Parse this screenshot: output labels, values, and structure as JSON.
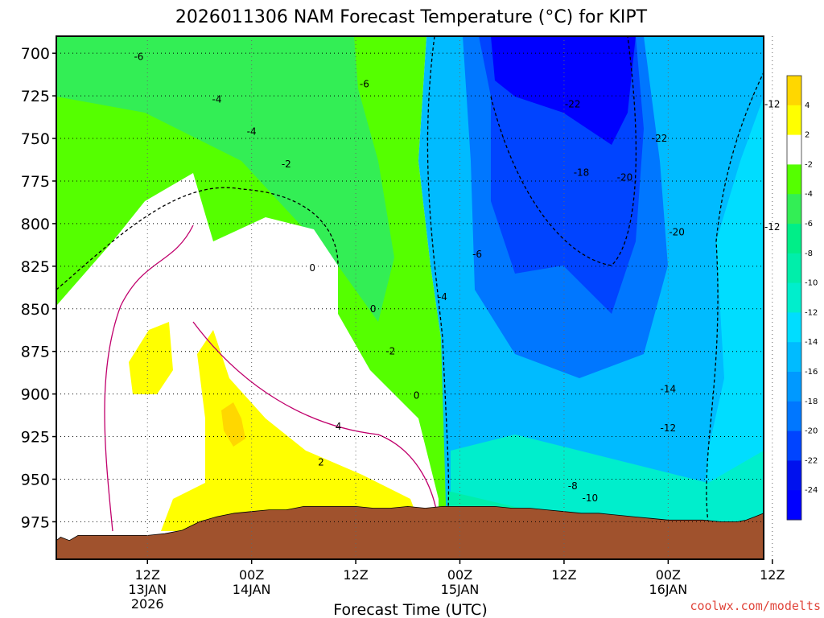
{
  "chart_data": {
    "type": "heatmap",
    "title": "2026011306 NAM Forecast Temperature (°C) for KIPT",
    "xlabel": "Forecast Time (UTC)",
    "ylabel": "",
    "credit": "coolwx.com/modelts",
    "y_axis": {
      "inverted": true,
      "ticks": [
        "700",
        "725",
        "750",
        "775",
        "800",
        "825",
        "850",
        "875",
        "900",
        "925",
        "950",
        "975"
      ],
      "range": [
        690,
        997
      ]
    },
    "x_axis": {
      "range_hours": [
        -4.5,
        77
      ],
      "ticks": [
        {
          "hour": 6,
          "line1": "12Z",
          "line2": "13JAN",
          "line3": "2026"
        },
        {
          "hour": 18,
          "line1": "00Z",
          "line2": "14JAN",
          "line3": ""
        },
        {
          "hour": 30,
          "line1": "12Z",
          "line2": "",
          "line3": ""
        },
        {
          "hour": 42,
          "line1": "00Z",
          "line2": "15JAN",
          "line3": ""
        },
        {
          "hour": 54,
          "line1": "12Z",
          "line2": "",
          "line3": ""
        },
        {
          "hour": 66,
          "line1": "00Z",
          "line2": "16JAN",
          "line3": ""
        },
        {
          "hour": 78,
          "line1": "12Z",
          "line2": "",
          "line3": ""
        }
      ]
    },
    "colorbar": {
      "levels": [
        "4",
        "2",
        "-2",
        "-4",
        "-6",
        "-8",
        "-10",
        "-12",
        "-14",
        "-16",
        "-18",
        "-20",
        "-22",
        "-24"
      ],
      "colors": [
        "#ffd700",
        "#ffff00",
        "#ffffff",
        "#55ff00",
        "#33ee55",
        "#00ee88",
        "#00eeaa",
        "#00eecc",
        "#00ddff",
        "#00bbff",
        "#0099ff",
        "#0077ff",
        "#0044ff",
        "#0011ee",
        "#0000ff"
      ]
    },
    "contour_labels": [
      {
        "text": "-6",
        "hour": 5,
        "pres": 702
      },
      {
        "text": "-6",
        "hour": 31,
        "pres": 718
      },
      {
        "text": "-4",
        "hour": 14,
        "pres": 727
      },
      {
        "text": "-4",
        "hour": 18,
        "pres": 746
      },
      {
        "text": "-2",
        "hour": 22,
        "pres": 765
      },
      {
        "text": "0",
        "hour": 25,
        "pres": 826
      },
      {
        "text": "0",
        "hour": 32,
        "pres": 850
      },
      {
        "text": "-2",
        "hour": 34,
        "pres": 875
      },
      {
        "text": "0",
        "hour": 37,
        "pres": 901
      },
      {
        "text": "4",
        "hour": 28,
        "pres": 919
      },
      {
        "text": "2",
        "hour": 26,
        "pres": 940
      },
      {
        "text": "-4",
        "hour": 40,
        "pres": 843
      },
      {
        "text": "-6",
        "hour": 44,
        "pres": 818
      },
      {
        "text": "-22",
        "hour": 55,
        "pres": 730
      },
      {
        "text": "-18",
        "hour": 56,
        "pres": 770
      },
      {
        "text": "-20",
        "hour": 61,
        "pres": 773
      },
      {
        "text": "-22",
        "hour": 65,
        "pres": 750
      },
      {
        "text": "-20",
        "hour": 67,
        "pres": 805
      },
      {
        "text": "-12",
        "hour": 78,
        "pres": 730
      },
      {
        "text": "-12",
        "hour": 78,
        "pres": 802
      },
      {
        "text": "-14",
        "hour": 66,
        "pres": 897
      },
      {
        "text": "-12",
        "hour": 66,
        "pres": 920
      },
      {
        "text": "-8",
        "hour": 55,
        "pres": 954
      },
      {
        "text": "-10",
        "hour": 57,
        "pres": 961
      }
    ],
    "terrain": {
      "color": "#a0522d",
      "surface_pressure": [
        {
          "hour": -4.5,
          "pres": 986
        },
        {
          "hour": -4,
          "pres": 984
        },
        {
          "hour": -3,
          "pres": 986
        },
        {
          "hour": -2,
          "pres": 983
        },
        {
          "hour": 0,
          "pres": 983
        },
        {
          "hour": 2,
          "pres": 983
        },
        {
          "hour": 4,
          "pres": 983
        },
        {
          "hour": 6,
          "pres": 983
        },
        {
          "hour": 8,
          "pres": 982
        },
        {
          "hour": 10,
          "pres": 980
        },
        {
          "hour": 12,
          "pres": 975
        },
        {
          "hour": 14,
          "pres": 972
        },
        {
          "hour": 16,
          "pres": 970
        },
        {
          "hour": 18,
          "pres": 969
        },
        {
          "hour": 20,
          "pres": 968
        },
        {
          "hour": 22,
          "pres": 968
        },
        {
          "hour": 24,
          "pres": 966
        },
        {
          "hour": 26,
          "pres": 966
        },
        {
          "hour": 28,
          "pres": 966
        },
        {
          "hour": 30,
          "pres": 966
        },
        {
          "hour": 32,
          "pres": 967
        },
        {
          "hour": 34,
          "pres": 967
        },
        {
          "hour": 36,
          "pres": 966
        },
        {
          "hour": 38,
          "pres": 967
        },
        {
          "hour": 40,
          "pres": 966
        },
        {
          "hour": 42,
          "pres": 966
        },
        {
          "hour": 44,
          "pres": 966
        },
        {
          "hour": 46,
          "pres": 966
        },
        {
          "hour": 48,
          "pres": 967
        },
        {
          "hour": 50,
          "pres": 967
        },
        {
          "hour": 52,
          "pres": 968
        },
        {
          "hour": 54,
          "pres": 969
        },
        {
          "hour": 56,
          "pres": 970
        },
        {
          "hour": 58,
          "pres": 970
        },
        {
          "hour": 60,
          "pres": 971
        },
        {
          "hour": 62,
          "pres": 972
        },
        {
          "hour": 64,
          "pres": 973
        },
        {
          "hour": 66,
          "pres": 974
        },
        {
          "hour": 68,
          "pres": 974
        },
        {
          "hour": 70,
          "pres": 974
        },
        {
          "hour": 72,
          "pres": 975
        },
        {
          "hour": 74,
          "pres": 975
        },
        {
          "hour": 75,
          "pres": 974
        },
        {
          "hour": 76,
          "pres": 972
        },
        {
          "hour": 77,
          "pres": 970
        }
      ]
    }
  }
}
